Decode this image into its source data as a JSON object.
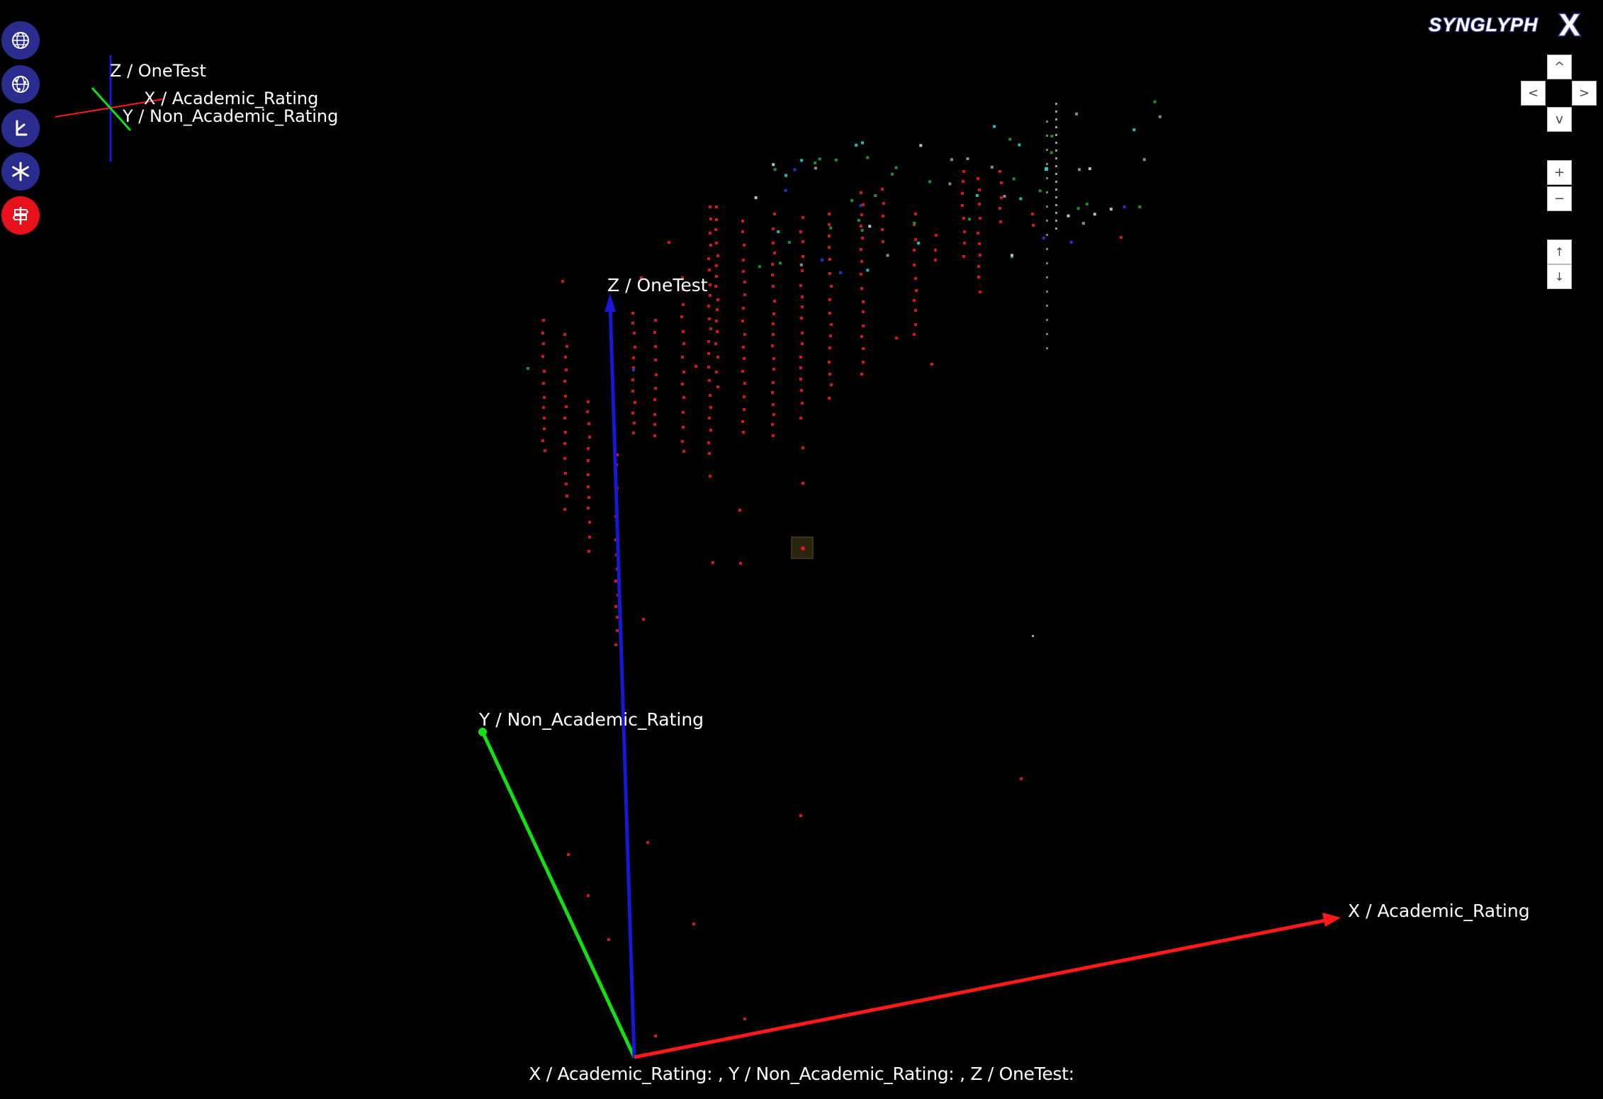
{
  "toolbar": [
    {
      "name": "globe-view-icon",
      "color": "#2b2d8e"
    },
    {
      "name": "globe-network-icon",
      "color": "#2b2d8e"
    },
    {
      "name": "branch-icon",
      "color": "#2b2d8e"
    },
    {
      "name": "asterisk-icon",
      "color": "#2b2d8e"
    },
    {
      "name": "signpost-icon",
      "color": "#e8101a"
    }
  ],
  "logo": {
    "text": "SYNGLYPH",
    "accent": "X"
  },
  "mini_axes": {
    "z_label": "Z / OneTest",
    "x_label": "X / Academic_Rating",
    "y_label": "Y / Non_Academic_Rating"
  },
  "main_axes": {
    "z_label": "Z / OneTest",
    "x_label": "X / Academic_Rating",
    "y_label": "Y / Non_Academic_Rating",
    "x_color": "#ff1a1a",
    "y_color": "#12e012",
    "z_color": "#1717d6"
  },
  "nav": {
    "up": "^",
    "left": "<",
    "right": ">",
    "down": "v",
    "zoom_in": "+",
    "zoom_out": "−",
    "raise": "↑",
    "lower": "↓"
  },
  "status_bar": "X / Academic_Rating: , Y / Non_Academic_Rating: , Z / OneTest:"
}
